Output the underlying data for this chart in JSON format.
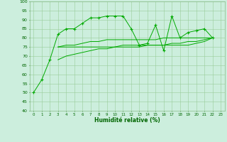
{
  "x": [
    0,
    1,
    2,
    3,
    4,
    5,
    6,
    7,
    8,
    9,
    10,
    11,
    12,
    13,
    14,
    15,
    16,
    17,
    18,
    19,
    20,
    21,
    22,
    23
  ],
  "line1": [
    50,
    57,
    68,
    82,
    85,
    85,
    88,
    91,
    91,
    92,
    92,
    92,
    85,
    76,
    77,
    87,
    73,
    92,
    80,
    83,
    84,
    85,
    80,
    null
  ],
  "line2": [
    null,
    null,
    null,
    75,
    75,
    75,
    75,
    75,
    75,
    75,
    75,
    76,
    76,
    76,
    76,
    76,
    76,
    76,
    76,
    76,
    77,
    78,
    80,
    null
  ],
  "line3": [
    null,
    null,
    null,
    68,
    70,
    71,
    72,
    73,
    74,
    74,
    75,
    75,
    75,
    75,
    76,
    76,
    76,
    77,
    77,
    78,
    78,
    79,
    80,
    null
  ],
  "line4": [
    null,
    null,
    null,
    75,
    76,
    76,
    77,
    78,
    78,
    79,
    79,
    79,
    79,
    79,
    79,
    79,
    80,
    80,
    80,
    80,
    80,
    80,
    80,
    null
  ],
  "bg_color": "#cceedd",
  "grid_color": "#99cc99",
  "line_color": "#00aa00",
  "xlabel": "Humidité relative (%)",
  "ylim": [
    40,
    100
  ],
  "xlim": [
    -0.5,
    23.5
  ],
  "yticks": [
    40,
    45,
    50,
    55,
    60,
    65,
    70,
    75,
    80,
    85,
    90,
    95,
    100
  ],
  "xticks": [
    0,
    1,
    2,
    3,
    4,
    5,
    6,
    7,
    8,
    9,
    10,
    11,
    12,
    13,
    14,
    15,
    16,
    17,
    18,
    19,
    20,
    21,
    22,
    23
  ]
}
